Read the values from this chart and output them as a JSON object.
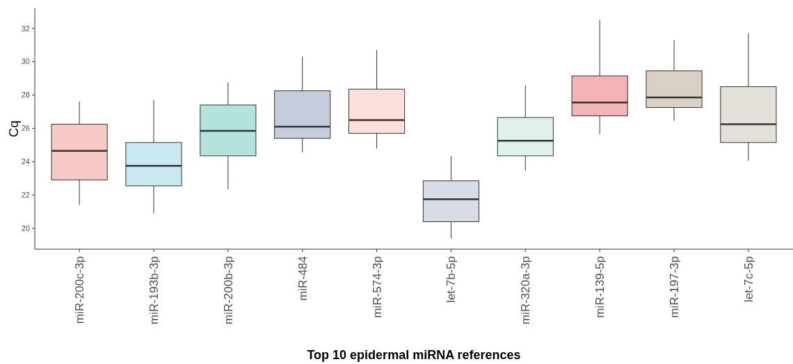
{
  "chart_data": {
    "type": "box",
    "xlabel": "Top 10 epidermal miRNA references",
    "ylabel": "Cq",
    "categories": [
      "miR-200c-3p",
      "miR-193b-3p",
      "miR-200b-3p",
      "miR-484",
      "miR-574-3p",
      "let-7b-5p",
      "miR-320a-3p",
      "miR-139-5p",
      "miR-197-3p",
      "let-7c-5p"
    ],
    "colors": [
      "#f7c9c4",
      "#cbe9f0",
      "#b3e3dc",
      "#c5ccdb",
      "#fbe0da",
      "#d8dce7",
      "#dff1ec",
      "#f4b3b4",
      "#d9d0c6",
      "#e4e0da"
    ],
    "boxes": [
      {
        "low": 21.4,
        "q1": 22.9,
        "median": 24.65,
        "q3": 26.25,
        "high": 27.6
      },
      {
        "low": 20.9,
        "q1": 22.55,
        "median": 23.75,
        "q3": 25.15,
        "high": 27.7
      },
      {
        "low": 22.35,
        "q1": 24.35,
        "median": 25.85,
        "q3": 27.4,
        "high": 28.75
      },
      {
        "low": 24.55,
        "q1": 25.4,
        "median": 26.1,
        "q3": 28.25,
        "high": 30.3
      },
      {
        "low": 24.8,
        "q1": 25.7,
        "median": 26.5,
        "q3": 28.35,
        "high": 30.7
      },
      {
        "low": 19.4,
        "q1": 20.4,
        "median": 21.75,
        "q3": 22.85,
        "high": 24.35
      },
      {
        "low": 23.45,
        "q1": 24.35,
        "median": 25.25,
        "q3": 26.65,
        "high": 28.55
      },
      {
        "low": 25.65,
        "q1": 26.75,
        "median": 27.55,
        "q3": 29.15,
        "high": 32.5
      },
      {
        "low": 26.45,
        "q1": 27.25,
        "median": 27.85,
        "q3": 29.45,
        "high": 31.3
      },
      {
        "low": 24.05,
        "q1": 25.15,
        "median": 26.25,
        "q3": 28.5,
        "high": 31.7
      }
    ],
    "ylim": [
      18.75,
      33.2
    ],
    "yticks": [
      20,
      22,
      24,
      26,
      28,
      30,
      32
    ],
    "grid": false
  }
}
